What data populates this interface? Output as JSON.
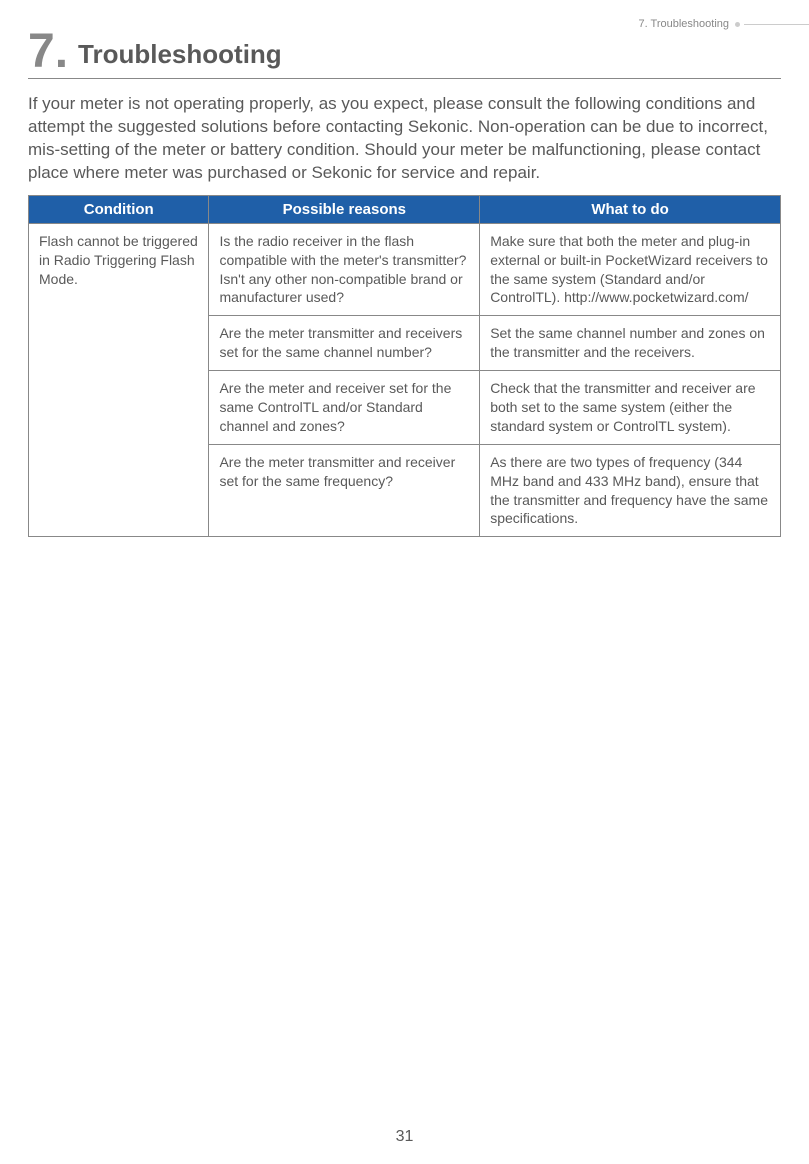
{
  "header": {
    "breadcrumb": "7. Troubleshooting"
  },
  "chapter": {
    "number": "7.",
    "title": "Troubleshooting"
  },
  "intro": "If your meter is not operating properly, as you expect, please consult the following conditions and attempt the suggested solutions before contacting Sekonic. Non-operation can be due to incorrect, mis-setting of the meter or battery condition. Should your meter be malfunctioning, please contact place where meter was purchased or Sekonic for service and repair.",
  "table": {
    "headers": {
      "col1": "Condition",
      "col2": "Possible reasons",
      "col3": "What to do"
    },
    "condition": "Flash cannot be triggered in Radio Triggering Flash Mode.",
    "rows": [
      {
        "reason": "Is the radio receiver in the flash compatible with the meter's transmitter? Isn't any other non-compatible brand or manufacturer used?",
        "action": "Make sure that both the meter and plug-in external or built-in PocketWizard receivers to the same system (Standard and/or ControlTL). http://www.pocketwizard.com/"
      },
      {
        "reason": "Are the meter transmitter and receivers set for the same channel number?",
        "action": "Set the same channel number and zones on the transmitter and the receivers."
      },
      {
        "reason": "Are the meter and receiver set for the same ControlTL and/or Standard channel and zones?",
        "action": "Check that the transmitter and receiver are both set to the same system (either the standard system or ControlTL system)."
      },
      {
        "reason": "Are the meter transmitter and receiver set for the same frequency?",
        "action": "As there are two types of frequency (344 MHz band and 433 MHz band), ensure that the transmitter and frequency have the same specifications."
      }
    ]
  },
  "pageNumber": "31",
  "colors": {
    "headerBg": "#1f5fa8",
    "headerText": "#ffffff",
    "bodyText": "#595959",
    "grayText": "#888888",
    "borderColor": "#888888",
    "background": "#ffffff"
  }
}
